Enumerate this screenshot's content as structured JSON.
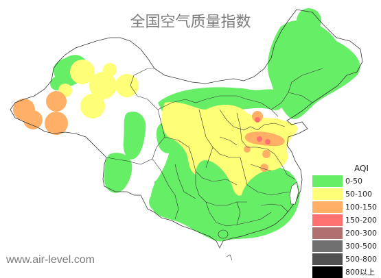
{
  "title": "全国空气质量指数",
  "watermark": "www.air-level.com",
  "legend": {
    "title": "AQI",
    "items": [
      {
        "label": "0-50",
        "color": "#66ee66"
      },
      {
        "label": "50-100",
        "color": "#ffff77"
      },
      {
        "label": "100-150",
        "color": "#ffb066"
      },
      {
        "label": "150-200",
        "color": "#ff7070"
      },
      {
        "label": "200-300",
        "color": "#b07070"
      },
      {
        "label": "300-500",
        "color": "#707070"
      },
      {
        "label": "500-800",
        "color": "#505050"
      },
      {
        "label": "800以上",
        "color": "#000000"
      }
    ]
  },
  "colors": {
    "good": "#66ee66",
    "moderate": "#ffff77",
    "unhealthy_sensitive": "#ffb066",
    "unhealthy": "#ff7070",
    "border": "#333333",
    "background": "#ffffff"
  }
}
